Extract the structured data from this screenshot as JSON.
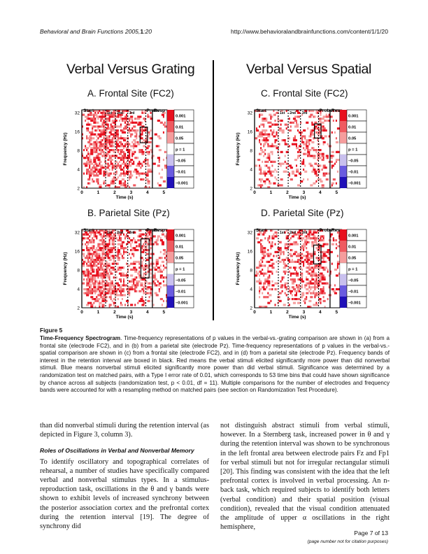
{
  "header": {
    "journal": "Behavioral and Brain Functions",
    "citation_year": "2005,",
    "citation_vol": "1",
    "citation_page": ":20",
    "url": "http://www.behavioralandbrainfunctions.com/content/1/1/20"
  },
  "figure": {
    "left_title": "Verbal Versus Grating",
    "right_title": "Verbal Versus Spatial",
    "panels": [
      {
        "title": "A. Frontal Site (FC2)"
      },
      {
        "title": "B. Parietal Site (Pz)"
      },
      {
        "title": "C. Frontal Site (FC2)"
      },
      {
        "title": "D. Parietal Site (Pz)"
      }
    ],
    "ylabel": "Frequency (Hz)",
    "xlabel": "Time (s)",
    "yticks": [
      "32",
      "16",
      "8",
      "4",
      "2"
    ],
    "xticks": [
      "0",
      "1",
      "2",
      "3",
      "4",
      "5"
    ],
    "events": [
      "Start",
      "1st",
      "2nd",
      "3rd",
      "Probe",
      "Resp"
    ],
    "legend": [
      "0.001",
      "0.01",
      "0.05",
      "p = 1",
      "–0.05",
      "–0.01",
      "–0.001"
    ],
    "colors": {
      "red_1": "#e8101e",
      "red_2": "#ef5a60",
      "red_3": "#f59d9d",
      "blue_1": "#c9c0ee",
      "blue_2": "#6a5be0",
      "blue_3": "#2010b8"
    }
  },
  "caption": {
    "label": "Figure 5",
    "title": "Time-Frequency Spectrogram",
    "text": ". Time-frequency representations of p values in the verbal-vs.-grating comparison are shown in (a) from a frontal site (electrode FC2), and in (b) from a parietal site (electrode Pz). Time-frequency representations of p values in the verbal-vs.-spatial comparison are shown in (c) from a frontal site (electrode FC2), and in (d) from a parietal site (electrode Pz). Frequency bands of interest in the retention interval are boxed in black. Red means the verbal stimuli elicited significantly more power than did nonverbal stimuli. Blue means nonverbal stimuli elicited significantly more power than did verbal stimuli. Significance was determined by a randomization test on matched pairs, with a Type I error rate of 0.01, which corresponds to 53 time bins that could have shown significance by chance across all subjects (randomization test, p < 0.01, df = 11). Multiple comparisons for the number of electrodes and frequency bands were accounted for with a resampling method on matched pairs (see section on Randomization Test Procedure)."
  },
  "body": {
    "left_p1": "than did nonverbal stimuli during the retention interval (as depicted in Figure 3, column 3).",
    "subheading": "Roles of Oscillations in Verbal and Nonverbal Memory",
    "left_p2": "To identify oscillatory and topographical correlates of rehearsal, a number of studies have specifically compared verbal and nonverbal stimulus types. In a stimulus-reproduction task, oscillations in the θ and γ bands were shown to exhibit levels of increased synchrony between the posterior association cortex and the prefrontal cortex during the retention interval [19]. The degree of synchrony did",
    "right_p1": "not distinguish abstract stimuli from verbal stimuli, however. In a Sternberg task, increased power in θ and γ during the retention interval was shown to be synchronous in the left frontal area between electrode pairs Fz and Fp1 for verbal stimuli but not for irregular rectangular stimuli [20]. This finding was consistent with the idea that the left prefrontal cortex is involved in verbal processing. An n-back task, which required subjects to identify both letters (verbal condition) and their spatial position (visual condition), revealed that the visual condition attenuated the amplitude of upper α oscillations in the right hemisphere,"
  },
  "footer": {
    "page": "Page 7 of 13",
    "note": "(page number not for citation purposes)"
  }
}
